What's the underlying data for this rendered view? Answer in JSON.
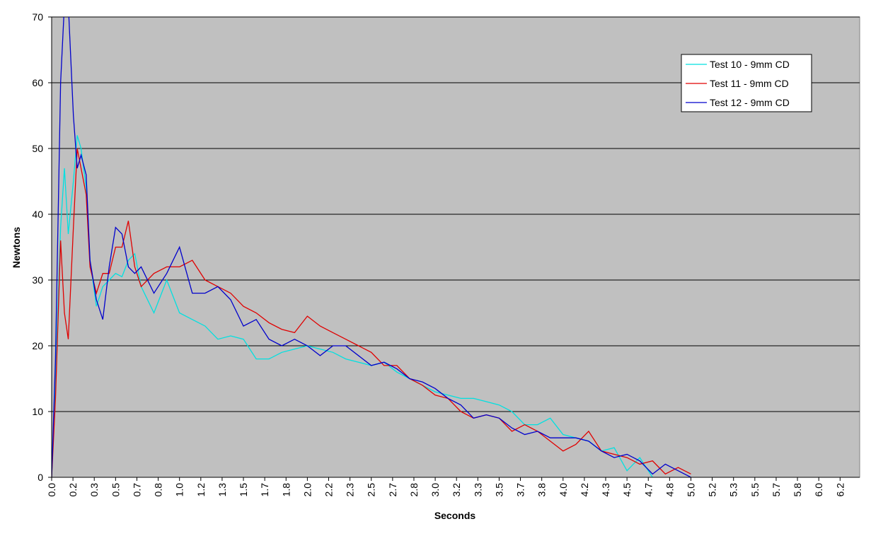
{
  "chart_data": {
    "type": "line",
    "x_label": "Seconds",
    "y_label": "Newtons",
    "x": [
      0,
      0.03,
      0.07,
      0.1,
      0.13,
      0.17,
      0.2,
      0.23,
      0.27,
      0.3,
      0.35,
      0.4,
      0.45,
      0.5,
      0.55,
      0.6,
      0.65,
      0.7,
      0.8,
      0.9,
      1.0,
      1.1,
      1.2,
      1.3,
      1.4,
      1.5,
      1.6,
      1.7,
      1.8,
      1.9,
      2.0,
      2.1,
      2.2,
      2.3,
      2.4,
      2.5,
      2.6,
      2.7,
      2.8,
      2.9,
      3.0,
      3.1,
      3.2,
      3.3,
      3.4,
      3.5,
      3.6,
      3.7,
      3.8,
      3.9,
      4.0,
      4.1,
      4.2,
      4.3,
      4.4,
      4.5,
      4.6,
      4.7,
      4.8,
      4.9,
      5.0
    ],
    "series": [
      {
        "name": "Test 10 - 9mm CD",
        "color": "#00e0e0",
        "values": [
          0,
          15,
          38,
          47,
          37,
          45,
          52,
          50,
          44,
          33,
          26,
          29,
          30,
          31,
          30.5,
          33,
          34,
          29,
          25,
          30,
          25,
          24,
          23,
          21,
          21.5,
          21,
          18,
          18,
          19,
          19.5,
          20,
          19.5,
          19,
          18,
          17.5,
          17,
          17.5,
          16,
          15,
          14,
          13,
          12.5,
          12,
          12,
          11.5,
          11,
          10,
          8,
          8,
          9,
          6.5,
          6,
          5.5,
          4,
          4.5,
          1,
          3,
          0,
          null,
          null,
          null
        ]
      },
      {
        "name": "Test 11 - 9mm CD",
        "color": "#e00000",
        "values": [
          0,
          12,
          36,
          25,
          21,
          38,
          50,
          47,
          43,
          32,
          28,
          31,
          31,
          35,
          35,
          39,
          32,
          29,
          31,
          32,
          32,
          33,
          30,
          29,
          28,
          26,
          25,
          23.5,
          22.5,
          22,
          24.5,
          23,
          22,
          21,
          20,
          19,
          17,
          17,
          15,
          14,
          12.5,
          12,
          10,
          9,
          9.5,
          9,
          7,
          8,
          7,
          5.5,
          4,
          5,
          7,
          4,
          3.5,
          3,
          2,
          2.5,
          0.5,
          1.5,
          0.5
        ]
      },
      {
        "name": "Test 12 - 9mm CD",
        "color": "#0000cc",
        "values": [
          0,
          18,
          60,
          72,
          72,
          55,
          47,
          49,
          46,
          33,
          27,
          24,
          32,
          38,
          37,
          32,
          31,
          32,
          28,
          31,
          35,
          28,
          28,
          29,
          27,
          23,
          24,
          21,
          20,
          21,
          20,
          18.5,
          20,
          20,
          18.5,
          17,
          17.5,
          16.5,
          15,
          14.5,
          13.5,
          12,
          11,
          9,
          9.5,
          9,
          7.5,
          6.5,
          7,
          6,
          6,
          6,
          5.5,
          4,
          3,
          3.5,
          2.5,
          0.5,
          2,
          1,
          0
        ]
      }
    ],
    "xlim": [
      0,
      6.32
    ],
    "xticks": [
      {
        "value": 0,
        "label": "0.0"
      },
      {
        "value": 0.1667,
        "label": "0.2"
      },
      {
        "value": 0.3333,
        "label": "0.3"
      },
      {
        "value": 0.5,
        "label": "0.5"
      },
      {
        "value": 0.6667,
        "label": "0.7"
      },
      {
        "value": 0.8333,
        "label": "0.8"
      },
      {
        "value": 1,
        "label": "1.0"
      },
      {
        "value": 1.1667,
        "label": "1.2"
      },
      {
        "value": 1.3333,
        "label": "1.3"
      },
      {
        "value": 1.5,
        "label": "1.5"
      },
      {
        "value": 1.6667,
        "label": "1.7"
      },
      {
        "value": 1.8333,
        "label": "1.8"
      },
      {
        "value": 2,
        "label": "2.0"
      },
      {
        "value": 2.1667,
        "label": "2.2"
      },
      {
        "value": 2.3333,
        "label": "2.3"
      },
      {
        "value": 2.5,
        "label": "2.5"
      },
      {
        "value": 2.6667,
        "label": "2.7"
      },
      {
        "value": 2.8333,
        "label": "2.8"
      },
      {
        "value": 3,
        "label": "3.0"
      },
      {
        "value": 3.1667,
        "label": "3.2"
      },
      {
        "value": 3.3333,
        "label": "3.3"
      },
      {
        "value": 3.5,
        "label": "3.5"
      },
      {
        "value": 3.6667,
        "label": "3.7"
      },
      {
        "value": 3.8333,
        "label": "3.8"
      },
      {
        "value": 4,
        "label": "4.0"
      },
      {
        "value": 4.1667,
        "label": "4.2"
      },
      {
        "value": 4.3333,
        "label": "4.3"
      },
      {
        "value": 4.5,
        "label": "4.5"
      },
      {
        "value": 4.6667,
        "label": "4.7"
      },
      {
        "value": 4.8333,
        "label": "4.8"
      },
      {
        "value": 5,
        "label": "5.0"
      },
      {
        "value": 5.1667,
        "label": "5.2"
      },
      {
        "value": 5.3333,
        "label": "5.3"
      },
      {
        "value": 5.5,
        "label": "5.5"
      },
      {
        "value": 5.6667,
        "label": "5.7"
      },
      {
        "value": 5.8333,
        "label": "5.8"
      },
      {
        "value": 6,
        "label": "6.0"
      },
      {
        "value": 6.1667,
        "label": "6.2"
      }
    ],
    "ylim": [
      0,
      70
    ],
    "yticks": [
      0,
      10,
      20,
      30,
      40,
      50,
      60,
      70
    ],
    "grid": true,
    "legend_position": "top-right",
    "plot_background": "#c0c0c0"
  }
}
